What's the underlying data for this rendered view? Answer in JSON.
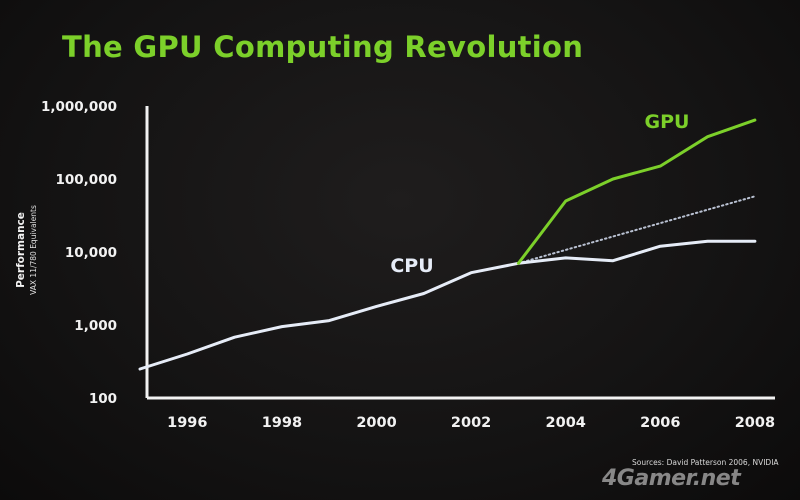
{
  "slide": {
    "title": "The GPU Computing Revolution",
    "source": "Sources:  David Patterson 2006, NVIDIA",
    "watermark": "4Gamer.net"
  },
  "chart_data": {
    "type": "line",
    "title": "The GPU Computing Revolution",
    "ylabel": "Performance",
    "ylabel_sub": "VAX 11/780 Equivalents",
    "xlabel": "",
    "yscale": "log",
    "ylim": [
      100,
      1000000
    ],
    "xlim": [
      1995,
      2008
    ],
    "x_ticks": [
      1996,
      1998,
      2000,
      2002,
      2004,
      2006,
      2008
    ],
    "y_ticks": [
      {
        "value": 100,
        "label": "100"
      },
      {
        "value": 1000,
        "label": "1,000"
      },
      {
        "value": 10000,
        "label": "10,000"
      },
      {
        "value": 100000,
        "label": "100,000"
      },
      {
        "value": 1000000,
        "label": "1,000,000"
      }
    ],
    "grid": false,
    "series": [
      {
        "name": "CPU",
        "color": "#e6ecf7",
        "style": "solid",
        "points": [
          [
            1995,
            250
          ],
          [
            1996,
            400
          ],
          [
            1997,
            680
          ],
          [
            1998,
            950
          ],
          [
            1999,
            1150
          ],
          [
            2000,
            1800
          ],
          [
            2001,
            2700
          ],
          [
            2002,
            5200
          ],
          [
            2003,
            7000
          ],
          [
            2004,
            8300
          ],
          [
            2005,
            7600
          ],
          [
            2006,
            12000
          ],
          [
            2007,
            14000
          ],
          [
            2008,
            14000
          ]
        ]
      },
      {
        "name": "GPU",
        "color": "#7cd02a",
        "style": "solid",
        "points": [
          [
            2003,
            7000
          ],
          [
            2004,
            50000
          ],
          [
            2005,
            100000
          ],
          [
            2006,
            150000
          ],
          [
            2007,
            380000
          ],
          [
            2008,
            640000
          ]
        ]
      },
      {
        "name": "",
        "color": "#b9c1d2",
        "style": "dotted",
        "points": [
          [
            2003,
            7000
          ],
          [
            2008,
            58000
          ]
        ]
      }
    ]
  }
}
